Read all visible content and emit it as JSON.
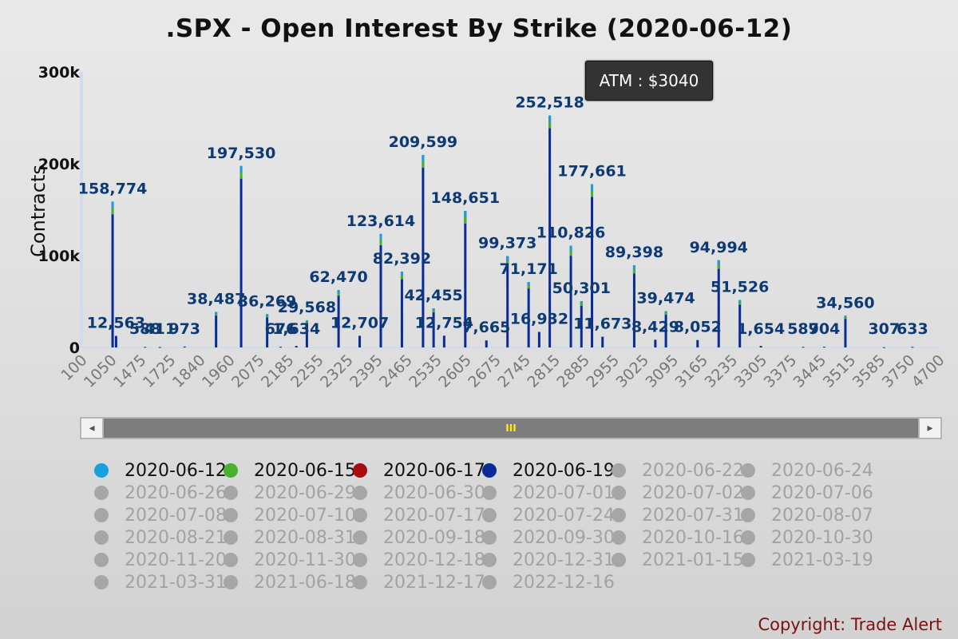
{
  "chart_data": {
    "type": "bar",
    "title": ".SPX - Open Interest By Strike (2020-06-12)",
    "ylabel": "Contracts",
    "xlabel": "",
    "ylim": [
      0,
      300000
    ],
    "y_ticks": [
      "0",
      "100k",
      "200k",
      "300k"
    ],
    "x_ticks": [
      "100",
      "1050",
      "1475",
      "1725",
      "1840",
      "1960",
      "2075",
      "2185",
      "2255",
      "2325",
      "2395",
      "2465",
      "2535",
      "2605",
      "2675",
      "2745",
      "2815",
      "2885",
      "2955",
      "3025",
      "3095",
      "3165",
      "3235",
      "3305",
      "3375",
      "3445",
      "3515",
      "3585",
      "3750",
      "4700"
    ],
    "annotation": "ATM : $3040",
    "data_labels": [
      {
        "strike": "1050",
        "value": 158774,
        "text": "158,774"
      },
      {
        "strike": "1100",
        "value": 12563,
        "text": "12,563"
      },
      {
        "strike": "1500",
        "value": 588,
        "text": "588"
      },
      {
        "strike": "1625",
        "value": 411,
        "text": "411"
      },
      {
        "strike": "1775",
        "value": 973,
        "text": "973"
      },
      {
        "strike": "1900",
        "value": 38487,
        "text": "38,487"
      },
      {
        "strike": "2000",
        "value": 197530,
        "text": "197,530"
      },
      {
        "strike": "2100",
        "value": 36269,
        "text": "36,269"
      },
      {
        "strike": "2150",
        "value": 676,
        "text": "676"
      },
      {
        "strike": "2200",
        "value": 1634,
        "text": "1,634"
      },
      {
        "strike": "2225",
        "value": 29568,
        "text": "29,568"
      },
      {
        "strike": "2300",
        "value": 62470,
        "text": "62,470"
      },
      {
        "strike": "2350",
        "value": 12707,
        "text": "12,707"
      },
      {
        "strike": "2400",
        "value": 123614,
        "text": "123,614"
      },
      {
        "strike": "2450",
        "value": 82392,
        "text": "82,392"
      },
      {
        "strike": "2500",
        "value": 209599,
        "text": "209,599"
      },
      {
        "strike": "2525",
        "value": 42455,
        "text": "42,455"
      },
      {
        "strike": "2550",
        "value": 12754,
        "text": "12,754"
      },
      {
        "strike": "2600",
        "value": 148651,
        "text": "148,651"
      },
      {
        "strike": "2650",
        "value": 7665,
        "text": "7,665"
      },
      {
        "strike": "2700",
        "value": 99373,
        "text": "99,373"
      },
      {
        "strike": "2750",
        "value": 71171,
        "text": "71,171"
      },
      {
        "strike": "2775",
        "value": 16932,
        "text": "16,932"
      },
      {
        "strike": "2800",
        "value": 252518,
        "text": "252,518"
      },
      {
        "strike": "2850",
        "value": 110826,
        "text": "110,826"
      },
      {
        "strike": "2875",
        "value": 50301,
        "text": "50,301"
      },
      {
        "strike": "2900",
        "value": 177661,
        "text": "177,661"
      },
      {
        "strike": "2925",
        "value": 11673,
        "text": "11,673"
      },
      {
        "strike": "3000",
        "value": 89398,
        "text": "89,398"
      },
      {
        "strike": "3050",
        "value": 8429,
        "text": "8,429"
      },
      {
        "strike": "3075",
        "value": 39474,
        "text": "39,474"
      },
      {
        "strike": "3150",
        "value": 8052,
        "text": "8,052"
      },
      {
        "strike": "3200",
        "value": 94994,
        "text": "94,994"
      },
      {
        "strike": "3250",
        "value": 51526,
        "text": "51,526"
      },
      {
        "strike": "3300",
        "value": 1654,
        "text": "1,654"
      },
      {
        "strike": "3400",
        "value": 589,
        "text": "589"
      },
      {
        "strike": "3450",
        "value": 704,
        "text": "704"
      },
      {
        "strike": "3500",
        "value": 34560,
        "text": "34,560"
      },
      {
        "strike": "3600",
        "value": 307,
        "text": "307"
      },
      {
        "strike": "3800",
        "value": 633,
        "text": "633"
      }
    ],
    "series": [
      {
        "name": "2020-06-12",
        "color": "#1aa0dc",
        "active": true
      },
      {
        "name": "2020-06-15",
        "color": "#4ab02e",
        "active": true
      },
      {
        "name": "2020-06-17",
        "color": "#a80b10",
        "active": true
      },
      {
        "name": "2020-06-19",
        "color": "#0a2a9a",
        "active": true
      },
      {
        "name": "2020-06-22",
        "color": "#a6a6a6",
        "active": false
      },
      {
        "name": "2020-06-24",
        "color": "#a6a6a6",
        "active": false
      },
      {
        "name": "2020-06-26",
        "color": "#a6a6a6",
        "active": false
      },
      {
        "name": "2020-06-29",
        "color": "#a6a6a6",
        "active": false
      },
      {
        "name": "2020-06-30",
        "color": "#a6a6a6",
        "active": false
      },
      {
        "name": "2020-07-01",
        "color": "#a6a6a6",
        "active": false
      },
      {
        "name": "2020-07-02",
        "color": "#a6a6a6",
        "active": false
      },
      {
        "name": "2020-07-06",
        "color": "#a6a6a6",
        "active": false
      },
      {
        "name": "2020-07-08",
        "color": "#a6a6a6",
        "active": false
      },
      {
        "name": "2020-07-10",
        "color": "#a6a6a6",
        "active": false
      },
      {
        "name": "2020-07-17",
        "color": "#a6a6a6",
        "active": false
      },
      {
        "name": "2020-07-24",
        "color": "#a6a6a6",
        "active": false
      },
      {
        "name": "2020-07-31",
        "color": "#a6a6a6",
        "active": false
      },
      {
        "name": "2020-08-07",
        "color": "#a6a6a6",
        "active": false
      },
      {
        "name": "2020-08-21",
        "color": "#a6a6a6",
        "active": false
      },
      {
        "name": "2020-08-31",
        "color": "#a6a6a6",
        "active": false
      },
      {
        "name": "2020-09-18",
        "color": "#a6a6a6",
        "active": false
      },
      {
        "name": "2020-09-30",
        "color": "#a6a6a6",
        "active": false
      },
      {
        "name": "2020-10-16",
        "color": "#a6a6a6",
        "active": false
      },
      {
        "name": "2020-10-30",
        "color": "#a6a6a6",
        "active": false
      },
      {
        "name": "2020-11-20",
        "color": "#a6a6a6",
        "active": false
      },
      {
        "name": "2020-11-30",
        "color": "#a6a6a6",
        "active": false
      },
      {
        "name": "2020-12-18",
        "color": "#a6a6a6",
        "active": false
      },
      {
        "name": "2020-12-31",
        "color": "#a6a6a6",
        "active": false
      },
      {
        "name": "2021-01-15",
        "color": "#a6a6a6",
        "active": false
      },
      {
        "name": "2021-03-19",
        "color": "#a6a6a6",
        "active": false
      },
      {
        "name": "2021-03-31",
        "color": "#a6a6a6",
        "active": false
      },
      {
        "name": "2021-06-18",
        "color": "#a6a6a6",
        "active": false
      },
      {
        "name": "2021-12-17",
        "color": "#a6a6a6",
        "active": false
      },
      {
        "name": "2022-12-16",
        "color": "#a6a6a6",
        "active": false
      }
    ],
    "grid": false,
    "legend_position": "bottom"
  },
  "scrollbar": {
    "left_arrow": "◂",
    "right_arrow": "▸",
    "thumb_grip": "III"
  },
  "copyright": "Copyright: Trade Alert"
}
